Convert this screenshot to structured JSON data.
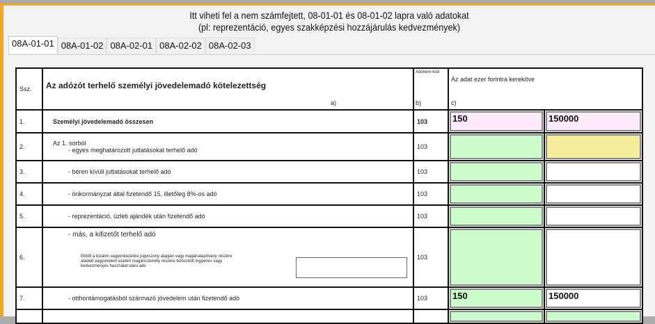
{
  "header": {
    "line1": "Itt viheti fel a nem számfejtett, 08-01-01 és 08-01-02 lapra való adatokat",
    "line2": "(pl: reprezentáció, egyes szakképzési hozzájárulás kedvezmények)"
  },
  "tabs": [
    {
      "label": "08A-01-01",
      "active": true
    },
    {
      "label": "08A-01-02"
    },
    {
      "label": "08A-02-01"
    },
    {
      "label": "08A-02-02"
    },
    {
      "label": "08A-02-03"
    }
  ],
  "table": {
    "head": {
      "ssz": "Ssz.",
      "title": "Az adózót terhelő személyi jövedelemadó kötelezettség",
      "a": "a)",
      "code": "Adónem-kód",
      "b": "b)",
      "value": "Az adat ezer forintra kerekítve",
      "c": "c)"
    },
    "rows": [
      {
        "ssz": "1.",
        "label": "Személyi jövedelemadó összesen",
        "code": "103",
        "v1": "150",
        "v2": "150000"
      },
      {
        "ssz": "2.",
        "pre": "Az 1. sorból",
        "label": "- egyes meghatározott juttatásokat terhelő adó",
        "code": "103",
        "v1": "",
        "v2": ""
      },
      {
        "ssz": "3.",
        "label": "- béren kívüli juttatásokat terhelő adó",
        "code": "103",
        "v1": "",
        "v2": ""
      },
      {
        "ssz": "4.",
        "label": "- önkormányzat által fizetendő 15, illetőleg 8%-os adó",
        "code": "103",
        "v1": "",
        "v2": ""
      },
      {
        "ssz": "5.",
        "label": "- reprezentáció, üzleti ajándék után fizetendő adó",
        "code": "103",
        "v1": "",
        "v2": ""
      },
      {
        "ssz": "6.",
        "label": "- más, a kifizetőt terhelő adó",
        "note": "Ebből a bizalmi vagyonkezelési jogviszony alapján vagy magánalapítvány részére átadott vagyonelem esetén magánszemély részére biztosított ingyenes vagy kedvezményes használat utáni adó",
        "note_value": "",
        "code": "103",
        "v1": "",
        "v2": ""
      },
      {
        "ssz": "7.",
        "label": "- otthontámogatásból származó jövedelem után fizetendő adó",
        "code": "103",
        "v1": "150",
        "v2": "150000"
      },
      {
        "ssz": "",
        "label": "",
        "code": "",
        "v1": "",
        "v2": ""
      }
    ]
  },
  "colors": {
    "accent": "#f5a623",
    "total": "#fdeafd",
    "input": "#ccfccc",
    "highlight": "#f5ed9c"
  }
}
